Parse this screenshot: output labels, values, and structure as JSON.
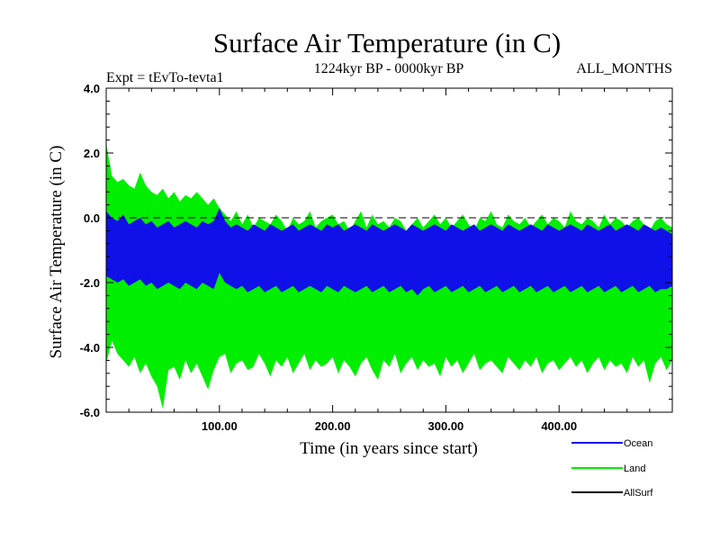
{
  "chart_data": {
    "type": "line",
    "title": "Surface Air Temperature (in C)",
    "subtitle_left": "Expt = tEvTo-tevta1",
    "subtitle_center": "1224kyr BP - 0000kyr BP",
    "subtitle_right": "ALL_MONTHS",
    "xlabel": "Time (in years since start)",
    "ylabel": "Surface Air Temperature (in C)",
    "xlim": [
      0,
      500
    ],
    "ylim": [
      -6.0,
      4.0
    ],
    "xticks": [
      100,
      200,
      300,
      400
    ],
    "xtick_labels": [
      "100.00",
      "200.00",
      "300.00",
      "400.00"
    ],
    "yticks": [
      -6.0,
      -4.0,
      -2.0,
      0.0,
      2.0,
      4.0
    ],
    "ytick_labels": [
      "-6.0",
      "-4.0",
      "-2.0",
      "0.0",
      "2.0",
      "4.0"
    ],
    "reference_line": {
      "y": 0.0,
      "style": "dashed"
    },
    "series": [
      {
        "name": "Land",
        "color": "#00ee00",
        "x_step": 5,
        "x": [
          0,
          5,
          10,
          15,
          20,
          25,
          30,
          35,
          40,
          45,
          50,
          55,
          60,
          65,
          70,
          75,
          80,
          85,
          90,
          95,
          100,
          105,
          110,
          115,
          120,
          125,
          130,
          135,
          140,
          145,
          150,
          155,
          160,
          165,
          170,
          175,
          180,
          185,
          190,
          195,
          200,
          205,
          210,
          215,
          220,
          225,
          230,
          235,
          240,
          245,
          250,
          255,
          260,
          265,
          270,
          275,
          280,
          285,
          290,
          295,
          300,
          305,
          310,
          315,
          320,
          325,
          330,
          335,
          340,
          345,
          350,
          355,
          360,
          365,
          370,
          375,
          380,
          385,
          390,
          395,
          400,
          405,
          410,
          415,
          420,
          425,
          430,
          435,
          440,
          445,
          450,
          455,
          460,
          465,
          470,
          475,
          480,
          485,
          490,
          495,
          500
        ],
        "upper": [
          2.3,
          1.3,
          1.1,
          1.2,
          1.0,
          0.9,
          1.4,
          1.0,
          0.8,
          0.7,
          0.9,
          0.6,
          0.8,
          0.5,
          0.7,
          0.6,
          0.8,
          0.6,
          0.4,
          0.6,
          0.3,
          0.1,
          -0.1,
          0.2,
          -0.2,
          0.1,
          -0.3,
          0.0,
          -0.1,
          -0.2,
          0.1,
          -0.1,
          -0.4,
          0.0,
          -0.2,
          -0.1,
          0.2,
          -0.3,
          -0.1,
          0.0,
          0.1,
          -0.2,
          -0.1,
          -0.4,
          -0.1,
          0.2,
          -0.3,
          0.1,
          -0.2,
          -0.1,
          -0.3,
          0.0,
          -0.1,
          -0.4,
          -0.2,
          0.0,
          -0.3,
          -0.1,
          0.1,
          -0.2,
          0.0,
          -0.3,
          -0.1,
          0.1,
          -0.2,
          -0.4,
          0.0,
          -0.1,
          0.2,
          -0.2,
          -0.3,
          0.1,
          -0.1,
          -0.2,
          0.0,
          -0.3,
          -0.1,
          0.1,
          -0.2,
          0.0,
          -0.1,
          -0.3,
          0.2,
          -0.1,
          -0.2,
          0.0,
          -0.1,
          -0.3,
          0.1,
          -0.2,
          0.0,
          -0.1,
          -0.3,
          -0.1,
          0.0,
          -0.2,
          -0.4,
          -0.1,
          0.0,
          -0.2,
          -0.3
        ],
        "lower": [
          -4.5,
          -3.8,
          -4.2,
          -4.4,
          -4.6,
          -4.3,
          -4.8,
          -4.5,
          -4.9,
          -5.2,
          -5.9,
          -4.7,
          -4.6,
          -5.0,
          -4.4,
          -4.8,
          -4.5,
          -4.9,
          -5.3,
          -4.7,
          -4.3,
          -4.2,
          -4.8,
          -4.5,
          -4.4,
          -4.7,
          -4.6,
          -4.2,
          -4.5,
          -4.9,
          -4.4,
          -4.6,
          -4.3,
          -4.8,
          -4.5,
          -4.2,
          -4.7,
          -4.4,
          -4.6,
          -4.5,
          -4.3,
          -4.8,
          -4.4,
          -4.6,
          -4.9,
          -4.5,
          -4.3,
          -4.7,
          -5.0,
          -4.4,
          -4.6,
          -4.2,
          -4.8,
          -4.5,
          -4.3,
          -4.7,
          -4.4,
          -4.6,
          -4.5,
          -4.9,
          -4.3,
          -4.6,
          -4.4,
          -4.8,
          -4.5,
          -4.2,
          -4.7,
          -4.5,
          -4.4,
          -4.6,
          -4.8,
          -4.3,
          -4.5,
          -4.7,
          -4.4,
          -4.6,
          -4.3,
          -4.8,
          -4.5,
          -4.4,
          -4.7,
          -4.5,
          -4.3,
          -4.6,
          -4.4,
          -4.8,
          -4.5,
          -4.3,
          -4.7,
          -4.4,
          -4.6,
          -4.5,
          -4.8,
          -4.3,
          -4.6,
          -4.4,
          -5.1,
          -4.5,
          -4.3,
          -4.7,
          -4.4
        ]
      },
      {
        "name": "Ocean",
        "color": "#1010e8",
        "x_step": 5,
        "x": [
          0,
          5,
          10,
          15,
          20,
          25,
          30,
          35,
          40,
          45,
          50,
          55,
          60,
          65,
          70,
          75,
          80,
          85,
          90,
          95,
          100,
          105,
          110,
          115,
          120,
          125,
          130,
          135,
          140,
          145,
          150,
          155,
          160,
          165,
          170,
          175,
          180,
          185,
          190,
          195,
          200,
          205,
          210,
          215,
          220,
          225,
          230,
          235,
          240,
          245,
          250,
          255,
          260,
          265,
          270,
          275,
          280,
          285,
          290,
          295,
          300,
          305,
          310,
          315,
          320,
          325,
          330,
          335,
          340,
          345,
          350,
          355,
          360,
          365,
          370,
          375,
          380,
          385,
          390,
          395,
          400,
          405,
          410,
          415,
          420,
          425,
          430,
          435,
          440,
          445,
          450,
          455,
          460,
          465,
          470,
          475,
          480,
          485,
          490,
          495,
          500
        ],
        "upper": [
          0.2,
          0.0,
          -0.1,
          0.1,
          -0.2,
          -0.1,
          0.0,
          -0.2,
          -0.1,
          -0.3,
          -0.2,
          -0.1,
          -0.3,
          -0.2,
          -0.1,
          -0.2,
          -0.3,
          -0.1,
          -0.2,
          -0.1,
          0.3,
          -0.1,
          -0.3,
          -0.2,
          -0.3,
          -0.4,
          -0.2,
          -0.3,
          -0.4,
          -0.2,
          -0.3,
          -0.4,
          -0.3,
          -0.2,
          -0.4,
          -0.3,
          -0.2,
          -0.3,
          -0.4,
          -0.2,
          -0.3,
          -0.2,
          -0.4,
          -0.3,
          -0.2,
          -0.3,
          -0.4,
          -0.2,
          -0.3,
          -0.4,
          -0.3,
          -0.2,
          -0.3,
          -0.4,
          -0.2,
          -0.3,
          -0.4,
          -0.3,
          -0.2,
          -0.3,
          -0.4,
          -0.2,
          -0.3,
          -0.4,
          -0.3,
          -0.2,
          -0.4,
          -0.3,
          -0.2,
          -0.3,
          -0.4,
          -0.2,
          -0.3,
          -0.4,
          -0.3,
          -0.2,
          -0.3,
          -0.4,
          -0.2,
          -0.3,
          -0.4,
          -0.3,
          -0.2,
          -0.3,
          -0.4,
          -0.2,
          -0.3,
          -0.4,
          -0.3,
          -0.2,
          -0.4,
          -0.3,
          -0.2,
          -0.3,
          -0.4,
          -0.2,
          -0.3,
          -0.4,
          -0.3,
          -0.4,
          -0.5
        ],
        "lower": [
          -1.8,
          -1.9,
          -2.0,
          -1.9,
          -2.1,
          -2.0,
          -1.9,
          -2.1,
          -2.0,
          -2.2,
          -2.1,
          -2.0,
          -2.1,
          -2.2,
          -2.0,
          -2.1,
          -2.2,
          -2.0,
          -2.1,
          -2.2,
          -1.7,
          -2.0,
          -2.1,
          -2.2,
          -2.1,
          -2.3,
          -2.2,
          -2.1,
          -2.3,
          -2.2,
          -2.1,
          -2.3,
          -2.2,
          -2.1,
          -2.3,
          -2.2,
          -2.1,
          -2.2,
          -2.3,
          -2.1,
          -2.2,
          -2.3,
          -2.1,
          -2.2,
          -2.3,
          -2.2,
          -2.1,
          -2.3,
          -2.2,
          -2.1,
          -2.3,
          -2.2,
          -2.1,
          -2.3,
          -2.2,
          -2.4,
          -2.2,
          -2.1,
          -2.3,
          -2.2,
          -2.1,
          -2.3,
          -2.2,
          -2.1,
          -2.3,
          -2.2,
          -2.1,
          -2.3,
          -2.2,
          -2.1,
          -2.3,
          -2.2,
          -2.1,
          -2.3,
          -2.2,
          -2.1,
          -2.3,
          -2.2,
          -2.1,
          -2.3,
          -2.2,
          -2.1,
          -2.3,
          -2.2,
          -2.1,
          -2.3,
          -2.2,
          -2.1,
          -2.3,
          -2.2,
          -2.1,
          -2.3,
          -2.2,
          -2.1,
          -2.3,
          -2.2,
          -2.1,
          -2.3,
          -2.2,
          -2.2,
          -2.1
        ]
      },
      {
        "name": "AllSurf",
        "color": "#000000"
      }
    ],
    "legend": [
      "Ocean",
      "Land",
      "AllSurf"
    ],
    "legend_position": "bottom-right"
  }
}
